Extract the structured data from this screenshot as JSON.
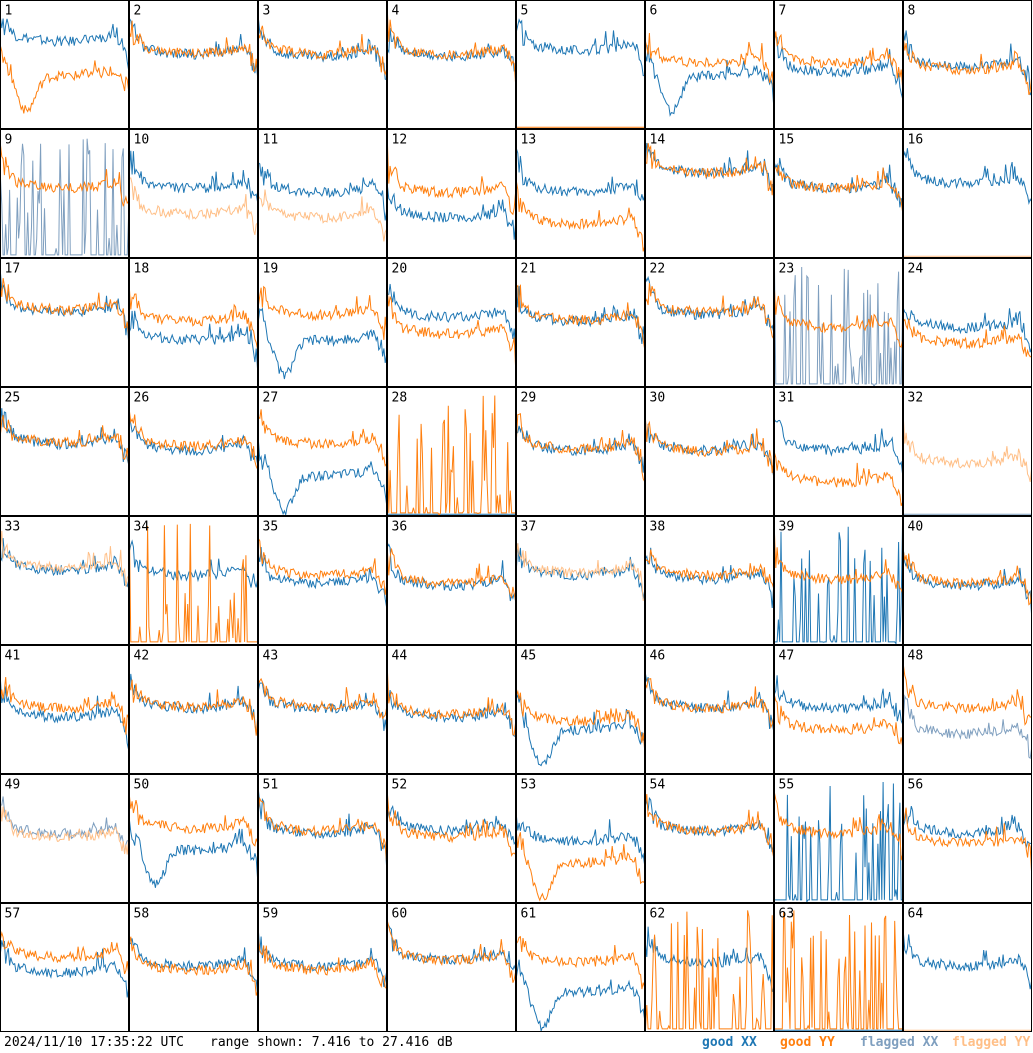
{
  "timestamp": "2024/11/10 17:35:22 UTC",
  "range_text": "range shown: 7.416 to 27.416 dB",
  "legend": [
    {
      "label": "good XX",
      "color": "#1f77b4"
    },
    {
      "label": "good YY",
      "color": "#ff7f0e"
    },
    {
      "label": "flagged XX",
      "color": "#7f9fbf"
    },
    {
      "label": "flagged YY",
      "color": "#ffbf87"
    }
  ],
  "colors": {
    "good_xx": "#1f77b4",
    "good_yy": "#ff7f0e",
    "flagged_xx": "#7f9fbf",
    "flagged_yy": "#ffbf87"
  },
  "chart_data": {
    "type": "line",
    "grid": "8x8 small multiples, one per tile",
    "y_range_db": [
      7.416,
      27.416
    ],
    "series_names": [
      "good XX",
      "good YY",
      "flagged XX",
      "flagged YY"
    ],
    "tiles": [
      {
        "n": 1,
        "xx": "good",
        "yy": "good",
        "xx_lvl": 0.72,
        "yy_lvl": 0.45,
        "xx_shape": "normal",
        "yy_shape": "dip"
      },
      {
        "n": 2,
        "xx": "good",
        "yy": "good",
        "xx_lvl": 0.62,
        "yy_lvl": 0.63,
        "xx_shape": "normal",
        "yy_shape": "normal"
      },
      {
        "n": 3,
        "xx": "good",
        "yy": "good",
        "xx_lvl": 0.6,
        "yy_lvl": 0.62,
        "xx_shape": "normal",
        "yy_shape": "normal"
      },
      {
        "n": 4,
        "xx": "good",
        "yy": "good",
        "xx_lvl": 0.6,
        "yy_lvl": 0.62,
        "xx_shape": "normal",
        "yy_shape": "normal"
      },
      {
        "n": 5,
        "xx": "good",
        "yy": "good",
        "xx_lvl": 0.65,
        "yy_lvl": 0.0,
        "xx_shape": "normal",
        "yy_shape": "dead"
      },
      {
        "n": 6,
        "xx": "good",
        "yy": "good",
        "xx_lvl": 0.45,
        "yy_lvl": 0.55,
        "xx_shape": "dip",
        "yy_shape": "normal"
      },
      {
        "n": 7,
        "xx": "good",
        "yy": "good",
        "xx_lvl": 0.48,
        "yy_lvl": 0.55,
        "xx_shape": "normal",
        "yy_shape": "normal"
      },
      {
        "n": 8,
        "xx": "good",
        "yy": "good",
        "xx_lvl": 0.52,
        "yy_lvl": 0.5,
        "xx_shape": "normal",
        "yy_shape": "normal"
      },
      {
        "n": 9,
        "xx": "flagged",
        "yy": "good",
        "xx_lvl": 0.0,
        "yy_lvl": 0.58,
        "xx_shape": "spiky",
        "yy_shape": "normal"
      },
      {
        "n": 10,
        "xx": "good",
        "yy": "flagged",
        "xx_lvl": 0.58,
        "yy_lvl": 0.38,
        "xx_shape": "normal",
        "yy_shape": "normal"
      },
      {
        "n": 11,
        "xx": "good",
        "yy": "flagged",
        "xx_lvl": 0.55,
        "yy_lvl": 0.35,
        "xx_shape": "normal",
        "yy_shape": "normal"
      },
      {
        "n": 12,
        "xx": "good",
        "yy": "good",
        "xx_lvl": 0.35,
        "yy_lvl": 0.55,
        "xx_shape": "normal",
        "yy_shape": "normal"
      },
      {
        "n": 13,
        "xx": "good",
        "yy": "good",
        "xx_lvl": 0.55,
        "yy_lvl": 0.3,
        "xx_shape": "normal",
        "yy_shape": "normal"
      },
      {
        "n": 14,
        "xx": "good",
        "yy": "good",
        "xx_lvl": 0.7,
        "yy_lvl": 0.7,
        "xx_shape": "normal",
        "yy_shape": "normal"
      },
      {
        "n": 15,
        "xx": "good",
        "yy": "good",
        "xx_lvl": 0.58,
        "yy_lvl": 0.58,
        "xx_shape": "normal",
        "yy_shape": "normal"
      },
      {
        "n": 16,
        "xx": "good",
        "yy": "flagged",
        "xx_lvl": 0.62,
        "yy_lvl": 0.0,
        "xx_shape": "normal",
        "yy_shape": "dead"
      },
      {
        "n": 17,
        "xx": "good",
        "yy": "good",
        "xx_lvl": 0.62,
        "yy_lvl": 0.64,
        "xx_shape": "normal",
        "yy_shape": "normal"
      },
      {
        "n": 18,
        "xx": "good",
        "yy": "good",
        "xx_lvl": 0.4,
        "yy_lvl": 0.55,
        "xx_shape": "normal",
        "yy_shape": "normal"
      },
      {
        "n": 19,
        "xx": "good",
        "yy": "good",
        "xx_lvl": 0.4,
        "yy_lvl": 0.6,
        "xx_shape": "dip",
        "yy_shape": "normal"
      },
      {
        "n": 20,
        "xx": "good",
        "yy": "good",
        "xx_lvl": 0.58,
        "yy_lvl": 0.45,
        "xx_shape": "normal",
        "yy_shape": "normal"
      },
      {
        "n": 21,
        "xx": "good",
        "yy": "good",
        "xx_lvl": 0.55,
        "yy_lvl": 0.56,
        "xx_shape": "normal",
        "yy_shape": "normal"
      },
      {
        "n": 22,
        "xx": "good",
        "yy": "good",
        "xx_lvl": 0.6,
        "yy_lvl": 0.62,
        "xx_shape": "normal",
        "yy_shape": "normal"
      },
      {
        "n": 23,
        "xx": "flagged",
        "yy": "good",
        "xx_lvl": 0.0,
        "yy_lvl": 0.5,
        "xx_shape": "spiky",
        "yy_shape": "normal"
      },
      {
        "n": 24,
        "xx": "good",
        "yy": "good",
        "xx_lvl": 0.5,
        "yy_lvl": 0.38,
        "xx_shape": "normal",
        "yy_shape": "normal"
      },
      {
        "n": 25,
        "xx": "good",
        "yy": "good",
        "xx_lvl": 0.6,
        "yy_lvl": 0.61,
        "xx_shape": "normal",
        "yy_shape": "normal"
      },
      {
        "n": 26,
        "xx": "good",
        "yy": "good",
        "xx_lvl": 0.55,
        "yy_lvl": 0.58,
        "xx_shape": "normal",
        "yy_shape": "normal"
      },
      {
        "n": 27,
        "xx": "good",
        "yy": "good",
        "xx_lvl": 0.35,
        "yy_lvl": 0.6,
        "xx_shape": "dip",
        "yy_shape": "normal"
      },
      {
        "n": 28,
        "xx": "good",
        "yy": "good",
        "xx_lvl": 0.0,
        "yy_lvl": 0.0,
        "xx_shape": "dead",
        "yy_shape": "spiky"
      },
      {
        "n": 29,
        "xx": "good",
        "yy": "good",
        "xx_lvl": 0.55,
        "yy_lvl": 0.56,
        "xx_shape": "normal",
        "yy_shape": "normal"
      },
      {
        "n": 30,
        "xx": "good",
        "yy": "good",
        "xx_lvl": 0.55,
        "yy_lvl": 0.54,
        "xx_shape": "normal",
        "yy_shape": "normal"
      },
      {
        "n": 31,
        "xx": "good",
        "yy": "good",
        "xx_lvl": 0.55,
        "yy_lvl": 0.3,
        "xx_shape": "normal",
        "yy_shape": "normal"
      },
      {
        "n": 32,
        "xx": "flagged",
        "yy": "flagged",
        "xx_lvl": 0.0,
        "yy_lvl": 0.45,
        "xx_shape": "dead",
        "yy_shape": "normal"
      },
      {
        "n": 33,
        "xx": "good",
        "yy": "flagged",
        "xx_lvl": 0.62,
        "yy_lvl": 0.64,
        "xx_shape": "normal",
        "yy_shape": "normal"
      },
      {
        "n": 34,
        "xx": "good",
        "yy": "good",
        "xx_lvl": 0.58,
        "yy_lvl": 0.0,
        "xx_shape": "normal",
        "yy_shape": "spiky"
      },
      {
        "n": 35,
        "xx": "good",
        "yy": "good",
        "xx_lvl": 0.52,
        "yy_lvl": 0.58,
        "xx_shape": "normal",
        "yy_shape": "normal"
      },
      {
        "n": 36,
        "xx": "good",
        "yy": "good",
        "xx_lvl": 0.5,
        "yy_lvl": 0.52,
        "xx_shape": "normal",
        "yy_shape": "normal"
      },
      {
        "n": 37,
        "xx": "good",
        "yy": "flagged",
        "xx_lvl": 0.58,
        "yy_lvl": 0.6,
        "xx_shape": "normal",
        "yy_shape": "normal"
      },
      {
        "n": 38,
        "xx": "good",
        "yy": "good",
        "xx_lvl": 0.55,
        "yy_lvl": 0.58,
        "xx_shape": "normal",
        "yy_shape": "normal"
      },
      {
        "n": 39,
        "xx": "good",
        "yy": "good",
        "xx_lvl": 0.0,
        "yy_lvl": 0.55,
        "xx_shape": "spiky",
        "yy_shape": "normal"
      },
      {
        "n": 40,
        "xx": "good",
        "yy": "good",
        "xx_lvl": 0.5,
        "yy_lvl": 0.52,
        "xx_shape": "normal",
        "yy_shape": "normal"
      },
      {
        "n": 41,
        "xx": "good",
        "yy": "good",
        "xx_lvl": 0.48,
        "yy_lvl": 0.55,
        "xx_shape": "normal",
        "yy_shape": "normal"
      },
      {
        "n": 42,
        "xx": "good",
        "yy": "good",
        "xx_lvl": 0.55,
        "yy_lvl": 0.56,
        "xx_shape": "normal",
        "yy_shape": "normal"
      },
      {
        "n": 43,
        "xx": "good",
        "yy": "good",
        "xx_lvl": 0.55,
        "yy_lvl": 0.56,
        "xx_shape": "normal",
        "yy_shape": "normal"
      },
      {
        "n": 44,
        "xx": "good",
        "yy": "good",
        "xx_lvl": 0.48,
        "yy_lvl": 0.5,
        "xx_shape": "normal",
        "yy_shape": "normal"
      },
      {
        "n": 45,
        "xx": "good",
        "yy": "good",
        "xx_lvl": 0.38,
        "yy_lvl": 0.45,
        "xx_shape": "dip",
        "yy_shape": "normal"
      },
      {
        "n": 46,
        "xx": "good",
        "yy": "good",
        "xx_lvl": 0.55,
        "yy_lvl": 0.55,
        "xx_shape": "normal",
        "yy_shape": "normal"
      },
      {
        "n": 47,
        "xx": "good",
        "yy": "good",
        "xx_lvl": 0.55,
        "yy_lvl": 0.38,
        "xx_shape": "normal",
        "yy_shape": "normal"
      },
      {
        "n": 48,
        "xx": "flagged",
        "yy": "good",
        "xx_lvl": 0.35,
        "yy_lvl": 0.55,
        "xx_shape": "normal",
        "yy_shape": "normal"
      },
      {
        "n": 49,
        "xx": "flagged",
        "yy": "flagged",
        "xx_lvl": 0.58,
        "yy_lvl": 0.55,
        "xx_shape": "normal",
        "yy_shape": "normal"
      },
      {
        "n": 50,
        "xx": "good",
        "yy": "good",
        "xx_lvl": 0.45,
        "yy_lvl": 0.62,
        "xx_shape": "dip",
        "yy_shape": "normal"
      },
      {
        "n": 51,
        "xx": "good",
        "yy": "good",
        "xx_lvl": 0.58,
        "yy_lvl": 0.6,
        "xx_shape": "normal",
        "yy_shape": "normal"
      },
      {
        "n": 52,
        "xx": "good",
        "yy": "good",
        "xx_lvl": 0.6,
        "yy_lvl": 0.55,
        "xx_shape": "normal",
        "yy_shape": "normal"
      },
      {
        "n": 53,
        "xx": "good",
        "yy": "good",
        "xx_lvl": 0.52,
        "yy_lvl": 0.35,
        "xx_shape": "normal",
        "yy_shape": "dip"
      },
      {
        "n": 54,
        "xx": "good",
        "yy": "good",
        "xx_lvl": 0.6,
        "yy_lvl": 0.6,
        "xx_shape": "normal",
        "yy_shape": "normal"
      },
      {
        "n": 55,
        "xx": "good",
        "yy": "good",
        "xx_lvl": 0.0,
        "yy_lvl": 0.58,
        "xx_shape": "spiky",
        "yy_shape": "normal"
      },
      {
        "n": 56,
        "xx": "good",
        "yy": "good",
        "xx_lvl": 0.58,
        "yy_lvl": 0.5,
        "xx_shape": "normal",
        "yy_shape": "normal"
      },
      {
        "n": 57,
        "xx": "good",
        "yy": "good",
        "xx_lvl": 0.5,
        "yy_lvl": 0.62,
        "xx_shape": "normal",
        "yy_shape": "normal"
      },
      {
        "n": 58,
        "xx": "good",
        "yy": "good",
        "xx_lvl": 0.55,
        "yy_lvl": 0.52,
        "xx_shape": "normal",
        "yy_shape": "normal"
      },
      {
        "n": 59,
        "xx": "good",
        "yy": "good",
        "xx_lvl": 0.55,
        "yy_lvl": 0.52,
        "xx_shape": "normal",
        "yy_shape": "normal"
      },
      {
        "n": 60,
        "xx": "good",
        "yy": "good",
        "xx_lvl": 0.6,
        "yy_lvl": 0.6,
        "xx_shape": "normal",
        "yy_shape": "normal"
      },
      {
        "n": 61,
        "xx": "good",
        "yy": "good",
        "xx_lvl": 0.35,
        "yy_lvl": 0.58,
        "xx_shape": "dip",
        "yy_shape": "normal"
      },
      {
        "n": 62,
        "xx": "good",
        "yy": "good",
        "xx_lvl": 0.58,
        "yy_lvl": 0.25,
        "xx_shape": "normal",
        "yy_shape": "spiky"
      },
      {
        "n": 63,
        "xx": "good",
        "yy": "good",
        "xx_lvl": 0.0,
        "yy_lvl": 0.0,
        "xx_shape": "dead",
        "yy_shape": "spiky"
      },
      {
        "n": 64,
        "xx": "good",
        "yy": "flagged",
        "xx_lvl": 0.55,
        "yy_lvl": 0.0,
        "xx_shape": "normal",
        "yy_shape": "dead"
      }
    ]
  }
}
